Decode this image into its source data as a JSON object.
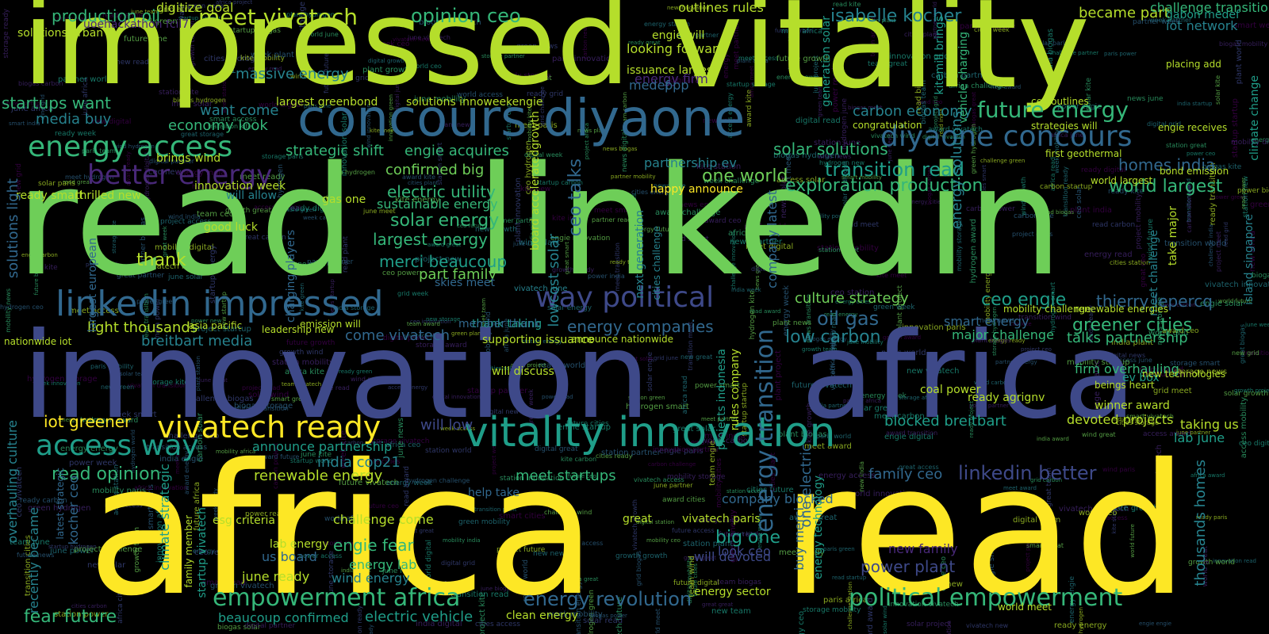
{
  "palette": {
    "yellow": "#fde725",
    "lime": "#b5de2b",
    "green": "#6ece58",
    "emerald": "#35b779",
    "teal": "#1f9e89",
    "cyan": "#26828e",
    "steel": "#31688e",
    "indigo": "#3e4989",
    "purple": "#482878",
    "deep": "#440154"
  },
  "words": {
    "impressed": "impressed",
    "vitality": "vitality",
    "read_linkedin_read": "read",
    "linkedin": "linkedin",
    "innovation": "innovation",
    "africa_mid": "africa",
    "africa_big": "africa",
    "read_big": "read",
    "concours_diyaone": "concours diyaone",
    "diyaone_concours": "diyaone concours",
    "energy_access": "energy access",
    "better_energy": "better energy",
    "linkedin_impressed": "linkedin impressed",
    "way_political": "way political",
    "vitality_innovation": "vitality innovation",
    "vivatech_ready": "vivatech ready",
    "access_way": "access way",
    "future_energy": "future energy",
    "empowerment_africa": "empowerment africa",
    "political_empowerment": "political empowerment",
    "energy_transition": "energy transition",
    "production_oil": "production oil",
    "meet_vivatech": "meet vivatech",
    "opinion_ceo": "opinion ceo",
    "isabelle_kocher": "isabelle kocher",
    "startups_want": "startups want",
    "media_buy": "media buy",
    "economy_look": "economy look",
    "strategic_shift": "strategic shift",
    "engie_acquires": "engie acquires",
    "solar_solutions": "solar solutions",
    "transition_read": "transition read",
    "exploration_production": "exploration production",
    "world_largest": "world largest",
    "homes_india": "homes india",
    "confirmed_big": "confirmed big",
    "electric_utility": "electric utility",
    "sustainable_energy": "sustainable energy",
    "solar_energy": "solar energy",
    "largest_energy": "largest energy",
    "merci_beaucoup": "merci beaucoup",
    "part_family": "part family",
    "thank": "thank",
    "light_thousands": "light thousands",
    "breitbart_media": "breitbart media",
    "come_vivatech": "come vivatech",
    "energy_companies": "energy companies",
    "low_carbon": "low carbon",
    "oil_gas": "oil gas",
    "ceo_engie": "ceo engie",
    "culture_strategy": "culture strategy",
    "smart_energy": "smart energy",
    "greener_cities": "greener cities",
    "talks_partnership": "talks partnership",
    "thierry_lepercq": "thierry lepercq",
    "iot_greener": "iot greener",
    "blocked_breitbart": "blocked breitbart",
    "linkedin_better": "linkedin better",
    "read_opinion": "read opinion",
    "renewable_energy": "renewable energy",
    "meet_startups": "meet startups",
    "india_cop21": "india cop21",
    "family_ceo": "family ceo",
    "company_blocked": "company blocked",
    "fear_future": "fear future",
    "engie_fear": "engie fear",
    "energy_lab": "energy lab",
    "wind_energy": "wind energy",
    "big_one": "big one",
    "us_board": "us board",
    "power_plant": "power plant",
    "new_family": "new family",
    "lowcost_solar": "lowcost solar",
    "ceo_talks": "ceo talks",
    "one_world": "one world",
    "partnership_ev": "partnership ev",
    "energy_firm": "energy firm",
    "carbon_economy": "carbon economy",
    "became_part": "became part",
    "challenge_transitioning": "challenge transitioning",
    "iot_network": "iot network",
    "outlines_rules": "outlines rules",
    "engie_will": "engie will",
    "looking_forward": "looking forward",
    "issuance_largest": "issuance largest",
    "want_come": "want come",
    "digitize_goal": "digitize goal",
    "massive_energy": "massive energy",
    "largest_greenbond": "largest greenbond",
    "solutions_innoweekengie": "solutions innoweekengie",
    "solutions_urban": "solutions urban",
    "ready_smart": "ready smart",
    "thrilled_new": "thrilled new",
    "brings_wind": "brings wind",
    "innovation_week": "innovation week",
    "good_luck": "good luck",
    "will_allow": "will allow",
    "gas_one": "gas one",
    "happy_announce": "happy announce",
    "thank_taking": "thank taking",
    "member_thank": "member thank",
    "supporting_issuance": "supporting issuance",
    "will_discuss": "will discuss",
    "major_challenge": "major challenge",
    "firm_overhauling": "firm overhauling",
    "winner_award": "winner award",
    "devoted_projects": "devoted projects",
    "taking_us": "taking us",
    "lab_june": "lab june",
    "announce_partnership": "announce partnership",
    "will_low": "will low",
    "help_take": "help take",
    "challenge_come": "challenge come",
    "esg_criteria": "esg criteria",
    "lab_energy": "lab energy",
    "june_ready": "june ready",
    "look_ceo": "look ceo",
    "will_devoted": "will devoted",
    "great": "great",
    "vivatech_paris": "vivatech paris",
    "energy_sector": "energy sector",
    "beaucoup_confirmed": "beaucoup confirmed",
    "electric_vehicle": "electric vehicle",
    "clean_energy": "clean energy",
    "energy_revolution": "energy revolution",
    "kocher_ceo": "kocher ceo",
    "recently_became": "recently became",
    "overhauling_culture": "overhauling culture",
    "solutions_light": "solutions light",
    "energy_solutions": "energy solutions",
    "thousands_homes": "thousands homes",
    "buy_merci": "buy merci",
    "company_latest": "company latest",
    "climate_strategic": "climate strategic",
    "charging_players": "charging players",
    "skies_meet": "skies meet",
    "ready_agrignv": "ready agrignv",
    "coal_power": "coal power",
    "world_meet": "world meet",
    "nationwide_iot": "nationwide iot",
    "latest_strategic": "latest strategic",
    "family_member": "family member",
    "startup_vivatech": "startup vivatech",
    "energy_technology": "energy technology",
    "vehicle_charging": "vehicle charging",
    "board_accelerated_growth": "board acceleratedgrowth",
    "next_generation": "next generation",
    "cities_challenge": "cities challenge",
    "largest_european": "largest european",
    "vivatech_june": "vivatech june",
    "one_electric": "one electric",
    "projects_indonesia": "projects indonesia",
    "rules_company": "rules company",
    "kitemill_brings": "kitemill brings",
    "climate_change": "climate change",
    "generation_solar": "generation solar",
    "congratulation": "congratulation",
    "take_major": "take major",
    "meet_challenge": "meet challenge",
    "island_singapore": "island singapore",
    "uoehackathon": "uoehackathon fcil7",
    "ppp": "ppp",
    "medef": "medef",
    "gabon_medef": "gabon medef",
    "engie_receives": "engie receives",
    "placing_add": "placing add",
    "world_largest_small": "world largest",
    "mobility_challenge": "mobility challenge",
    "renewable_energies": "renewable energies",
    "ev_box": "ev box",
    "new_technologies": "new technologies",
    "beings_heart": "beings heart",
    "will_discuss_small": "asia pacific",
    "leadership_new": "leadership new",
    "emission_will": "emission will",
    "announce_nationwide": "announce nationwide",
    "first_geothermal": "first geothermal",
    "bond_emission": "bond emission",
    "strategies_will": "strategies will",
    "became_part_small": "ceo outlines",
    "filler": [
      "energy",
      "engie",
      "solar",
      "power",
      "ceo",
      "vivatech",
      "meet",
      "ready",
      "news",
      "new",
      "june",
      "startup",
      "award",
      "grid",
      "world",
      "paris",
      "india",
      "green",
      "smart",
      "cities",
      "africa",
      "hydrogen",
      "storage",
      "mobility",
      "digital",
      "innovation",
      "partner",
      "challenge",
      "biogas",
      "wind",
      "carbon",
      "future",
      "team",
      "read",
      "great",
      "week",
      "growth",
      "plant",
      "project",
      "access",
      "kite",
      "station",
      "transition"
    ]
  }
}
